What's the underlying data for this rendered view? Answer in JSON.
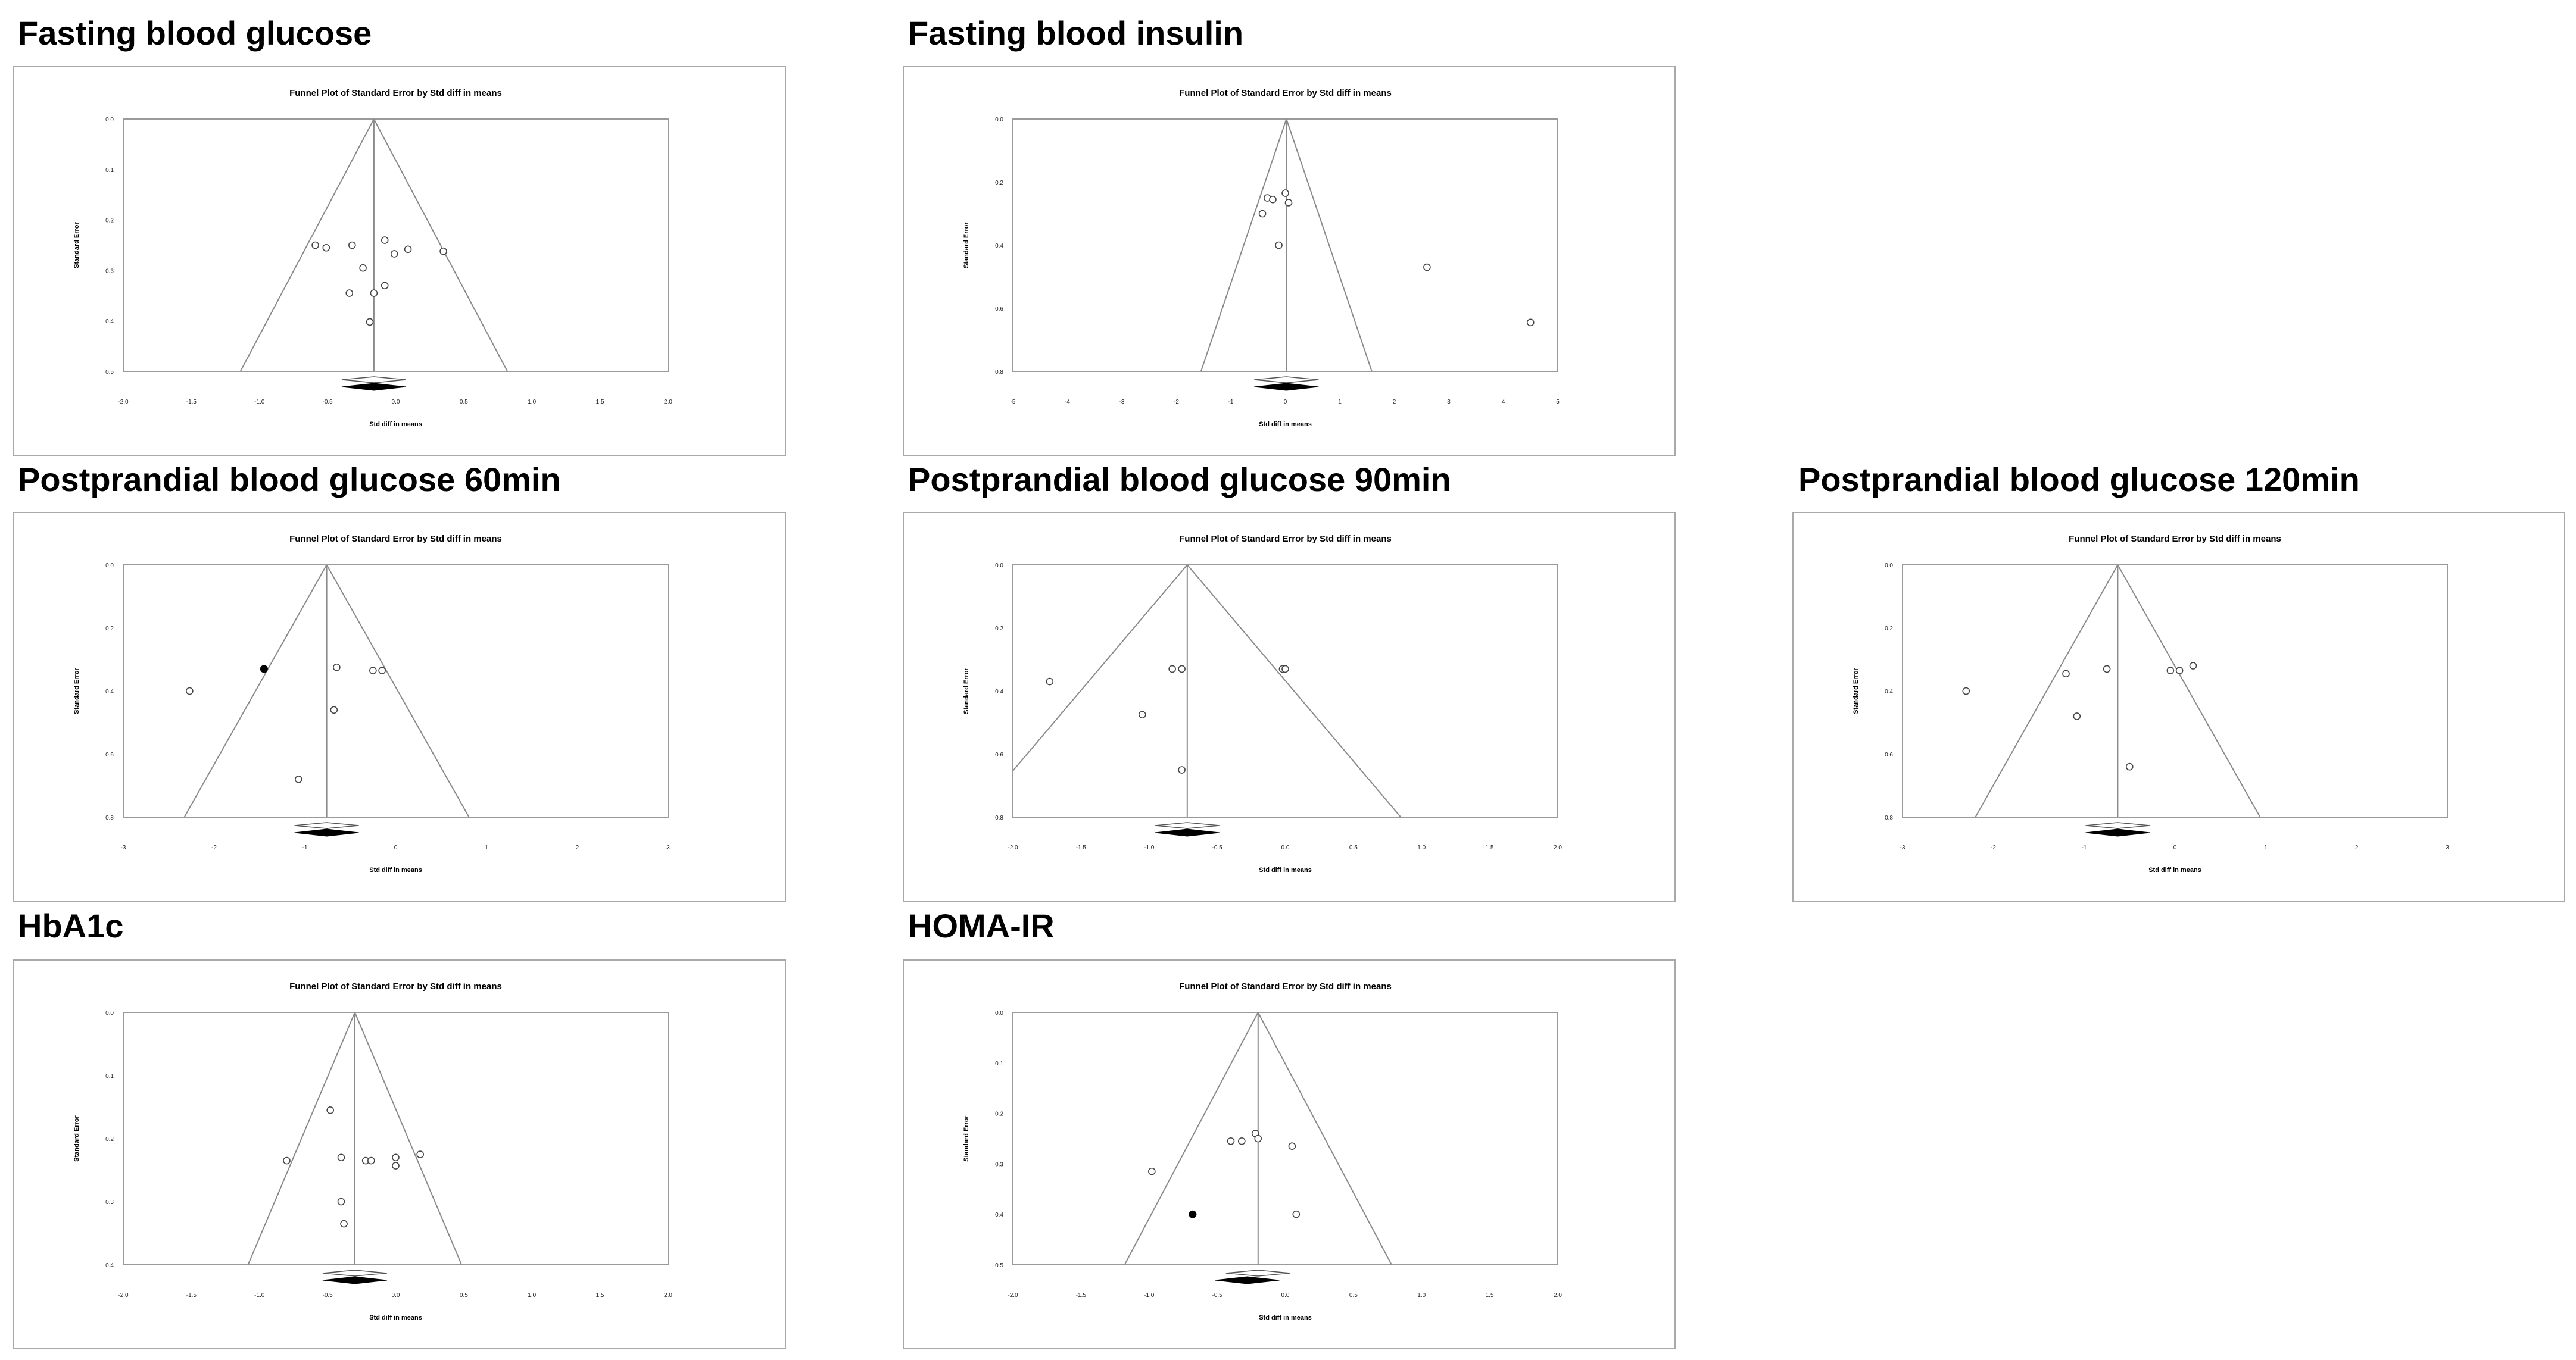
{
  "chart_data": [
    {
      "id": "fbg",
      "type": "scatter",
      "heading": "Fasting blood glucose",
      "title": "Funnel Plot of Standard Error by Std diff in means",
      "xlabel": "Std diff in means",
      "ylabel": "Standard Error",
      "xlim": [
        -2.0,
        2.0
      ],
      "ylim": [
        0.0,
        0.5
      ],
      "xticks": [
        -2.0,
        -1.5,
        -1.0,
        -0.5,
        0.0,
        0.5,
        1.0,
        1.5,
        2.0
      ],
      "xtick_labels": [
        "-2.0",
        "-1.5",
        "-1.0",
        "-0.5",
        "0.0",
        "0.5",
        "1.0",
        "1.5",
        "2.0"
      ],
      "yticks": [
        0.0,
        0.1,
        0.2,
        0.3,
        0.4,
        0.5
      ],
      "ytick_labels": [
        "0.0",
        "0.1",
        "0.2",
        "0.3",
        "0.4",
        "0.5"
      ],
      "summary_effect": -0.16,
      "imputed_effect": -0.16,
      "points": [
        {
          "x": -0.59,
          "y": 0.25
        },
        {
          "x": -0.51,
          "y": 0.255
        },
        {
          "x": -0.32,
          "y": 0.25
        },
        {
          "x": -0.24,
          "y": 0.295
        },
        {
          "x": -0.08,
          "y": 0.24
        },
        {
          "x": -0.01,
          "y": 0.267
        },
        {
          "x": 0.09,
          "y": 0.258
        },
        {
          "x": 0.35,
          "y": 0.262
        },
        {
          "x": -0.34,
          "y": 0.345
        },
        {
          "x": -0.16,
          "y": 0.345
        },
        {
          "x": -0.08,
          "y": 0.33
        },
        {
          "x": -0.19,
          "y": 0.402
        }
      ]
    },
    {
      "id": "fbi",
      "type": "scatter",
      "heading": "Fasting blood insulin",
      "title": "Funnel Plot of Standard Error by Std diff in means",
      "xlabel": "Std diff in means",
      "ylabel": "Standard Error",
      "xlim": [
        -5,
        5
      ],
      "ylim": [
        0.0,
        0.8
      ],
      "xticks": [
        -5,
        -4,
        -3,
        -2,
        -1,
        0,
        1,
        2,
        3,
        4,
        5
      ],
      "xtick_labels": [
        "-5",
        "-4",
        "-3",
        "-2",
        "-1",
        "0",
        "1",
        "2",
        "3",
        "4",
        "5"
      ],
      "yticks": [
        0.0,
        0.2,
        0.4,
        0.6,
        0.8
      ],
      "ytick_labels": [
        "0.0",
        "0.2",
        "0.4",
        "0.6",
        "0.8"
      ],
      "summary_effect": 0.02,
      "imputed_effect": 0.02,
      "points": [
        {
          "x": -0.42,
          "y": 0.3
        },
        {
          "x": -0.33,
          "y": 0.25
        },
        {
          "x": -0.23,
          "y": 0.255
        },
        {
          "x": 0.0,
          "y": 0.235
        },
        {
          "x": 0.06,
          "y": 0.265
        },
        {
          "x": -0.12,
          "y": 0.4
        },
        {
          "x": 2.6,
          "y": 0.47
        },
        {
          "x": 4.5,
          "y": 0.645
        }
      ]
    },
    {
      "id": "pbg60",
      "type": "scatter",
      "heading": "Postprandial blood glucose 60min",
      "title": "Funnel Plot of Standard Error by Std diff in means",
      "xlabel": "Std diff in means",
      "ylabel": "Standard Error",
      "xlim": [
        -3,
        3
      ],
      "ylim": [
        0.0,
        0.8
      ],
      "xticks": [
        -3,
        -2,
        -1,
        0,
        1,
        2,
        3
      ],
      "xtick_labels": [
        "-3",
        "-2",
        "-1",
        "0",
        "1",
        "2",
        "3"
      ],
      "yticks": [
        0.0,
        0.2,
        0.4,
        0.6,
        0.8
      ],
      "ytick_labels": [
        "0.0",
        "0.2",
        "0.4",
        "0.6",
        "0.8"
      ],
      "summary_effect": -0.76,
      "imputed_effect": -0.76,
      "points": [
        {
          "x": -2.27,
          "y": 0.4
        },
        {
          "x": -0.65,
          "y": 0.325
        },
        {
          "x": -0.25,
          "y": 0.335
        },
        {
          "x": -0.15,
          "y": 0.335
        },
        {
          "x": -0.68,
          "y": 0.46
        },
        {
          "x": -1.07,
          "y": 0.68
        }
      ],
      "imputed_points": [
        {
          "x": -1.45,
          "y": 0.33
        }
      ]
    },
    {
      "id": "pbg90",
      "type": "scatter",
      "heading": "Postprandial blood glucose 90min",
      "title": "Funnel Plot of Standard Error by Std diff in means",
      "xlabel": "Std diff in means",
      "ylabel": "Standard Error",
      "xlim": [
        -2.0,
        2.0
      ],
      "ylim": [
        0.0,
        0.8
      ],
      "xticks": [
        -2.0,
        -1.5,
        -1.0,
        -0.5,
        0.0,
        0.5,
        1.0,
        1.5,
        2.0
      ],
      "xtick_labels": [
        "-2.0",
        "-1.5",
        "-1.0",
        "-0.5",
        "0.0",
        "0.5",
        "1.0",
        "1.5",
        "2.0"
      ],
      "yticks": [
        0.0,
        0.2,
        0.4,
        0.6,
        0.8
      ],
      "ytick_labels": [
        "0.0",
        "0.2",
        "0.4",
        "0.6",
        "0.8"
      ],
      "summary_effect": -0.72,
      "imputed_effect": -0.72,
      "points": [
        {
          "x": -1.73,
          "y": 0.37
        },
        {
          "x": -0.83,
          "y": 0.33
        },
        {
          "x": -0.76,
          "y": 0.33
        },
        {
          "x": -0.02,
          "y": 0.33
        },
        {
          "x": 0.0,
          "y": 0.33
        },
        {
          "x": -1.05,
          "y": 0.475
        },
        {
          "x": -0.76,
          "y": 0.65
        }
      ]
    },
    {
      "id": "pbg120",
      "type": "scatter",
      "heading": "Postprandial blood glucose 120min",
      "title": "Funnel Plot of Standard Error by Std diff in means",
      "xlabel": "Std diff in means",
      "ylabel": "Standard Error",
      "xlim": [
        -3,
        3
      ],
      "ylim": [
        0.0,
        0.8
      ],
      "xticks": [
        -3,
        -2,
        -1,
        0,
        1,
        2,
        3
      ],
      "xtick_labels": [
        "-3",
        "-2",
        "-1",
        "0",
        "1",
        "2",
        "3"
      ],
      "yticks": [
        0.0,
        0.2,
        0.4,
        0.6,
        0.8
      ],
      "ytick_labels": [
        "0.0",
        "0.2",
        "0.4",
        "0.6",
        "0.8"
      ],
      "summary_effect": -0.63,
      "imputed_effect": -0.63,
      "points": [
        {
          "x": -2.3,
          "y": 0.4
        },
        {
          "x": -1.2,
          "y": 0.345
        },
        {
          "x": -0.75,
          "y": 0.33
        },
        {
          "x": -0.05,
          "y": 0.335
        },
        {
          "x": 0.05,
          "y": 0.335
        },
        {
          "x": 0.2,
          "y": 0.32
        },
        {
          "x": -1.08,
          "y": 0.48
        },
        {
          "x": -0.5,
          "y": 0.64
        }
      ]
    },
    {
      "id": "hba1c",
      "type": "scatter",
      "heading": "HbA1c",
      "title": "Funnel Plot of Standard Error by Std diff in means",
      "xlabel": "Std diff in means",
      "ylabel": "Standard Error",
      "xlim": [
        -2.0,
        2.0
      ],
      "ylim": [
        0.0,
        0.4
      ],
      "xticks": [
        -2.0,
        -1.5,
        -1.0,
        -0.5,
        0.0,
        0.5,
        1.0,
        1.5,
        2.0
      ],
      "xtick_labels": [
        "-2.0",
        "-1.5",
        "-1.0",
        "-0.5",
        "0.0",
        "0.5",
        "1.0",
        "1.5",
        "2.0"
      ],
      "yticks": [
        0.0,
        0.1,
        0.2,
        0.3,
        0.4
      ],
      "ytick_labels": [
        "0.0",
        "0.1",
        "0.2",
        "0.3",
        "0.4"
      ],
      "summary_effect": -0.3,
      "imputed_effect": -0.3,
      "points": [
        {
          "x": -0.48,
          "y": 0.155
        },
        {
          "x": -0.8,
          "y": 0.235
        },
        {
          "x": -0.4,
          "y": 0.23
        },
        {
          "x": -0.22,
          "y": 0.235
        },
        {
          "x": -0.18,
          "y": 0.235
        },
        {
          "x": 0.0,
          "y": 0.23
        },
        {
          "x": 0.0,
          "y": 0.243
        },
        {
          "x": 0.18,
          "y": 0.225
        },
        {
          "x": -0.4,
          "y": 0.3
        },
        {
          "x": -0.38,
          "y": 0.335
        }
      ]
    },
    {
      "id": "homa",
      "type": "scatter",
      "heading": "HOMA-IR",
      "title": "Funnel Plot of Standard Error by Std diff in means",
      "xlabel": "Std diff in means",
      "ylabel": "Standard Error",
      "xlim": [
        -2.0,
        2.0
      ],
      "ylim": [
        0.0,
        0.5
      ],
      "xticks": [
        -2.0,
        -1.5,
        -1.0,
        -0.5,
        0.0,
        0.5,
        1.0,
        1.5,
        2.0
      ],
      "xtick_labels": [
        "-2.0",
        "-1.5",
        "-1.0",
        "-0.5",
        "0.0",
        "0.5",
        "1.0",
        "1.5",
        "2.0"
      ],
      "yticks": [
        0.0,
        0.1,
        0.2,
        0.3,
        0.4,
        0.5
      ],
      "ytick_labels": [
        "0.0",
        "0.1",
        "0.2",
        "0.3",
        "0.4",
        "0.5"
      ],
      "summary_effect": -0.2,
      "imputed_effect": -0.28,
      "points": [
        {
          "x": -0.98,
          "y": 0.315
        },
        {
          "x": -0.4,
          "y": 0.255
        },
        {
          "x": -0.32,
          "y": 0.255
        },
        {
          "x": -0.22,
          "y": 0.24
        },
        {
          "x": -0.2,
          "y": 0.25
        },
        {
          "x": 0.05,
          "y": 0.265
        },
        {
          "x": 0.08,
          "y": 0.4
        }
      ],
      "imputed_points": [
        {
          "x": -0.68,
          "y": 0.4
        }
      ]
    }
  ]
}
